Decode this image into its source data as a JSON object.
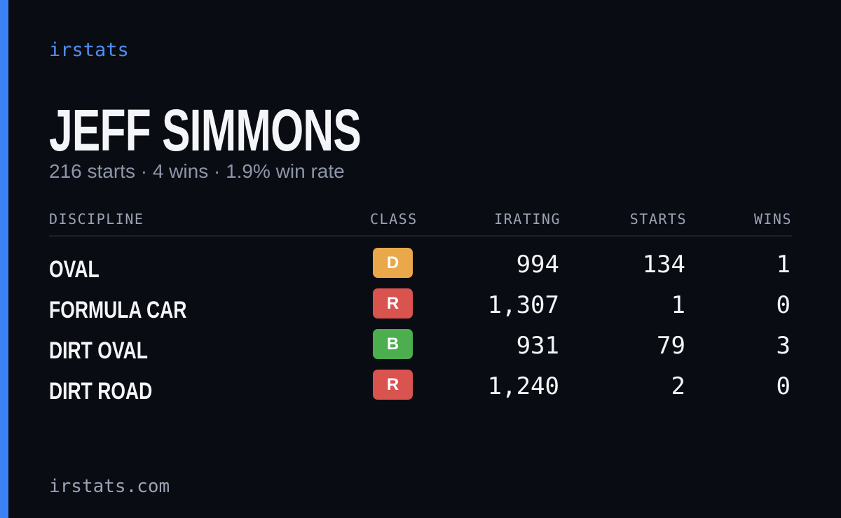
{
  "brand": "irstats",
  "name": "JEFF SIMMONS",
  "subtitle": "216 starts · 4 wins · 1.9% win rate",
  "table": {
    "headers": [
      "DISCIPLINE",
      "CLASS",
      "IRATING",
      "STARTS",
      "WINS"
    ],
    "rows": [
      {
        "discipline": "OVAL",
        "class": "D",
        "class_color": "#e9a84a",
        "irating": "994",
        "starts": "134",
        "wins": "1"
      },
      {
        "discipline": "FORMULA CAR",
        "class": "R",
        "class_color": "#d9534f",
        "irating": "1,307",
        "starts": "1",
        "wins": "0"
      },
      {
        "discipline": "DIRT OVAL",
        "class": "B",
        "class_color": "#4cae4f",
        "irating": "931",
        "starts": "79",
        "wins": "3"
      },
      {
        "discipline": "DIRT ROAD",
        "class": "R",
        "class_color": "#d9534f",
        "irating": "1,240",
        "starts": "2",
        "wins": "0"
      }
    ]
  },
  "footer": "irstats.com"
}
